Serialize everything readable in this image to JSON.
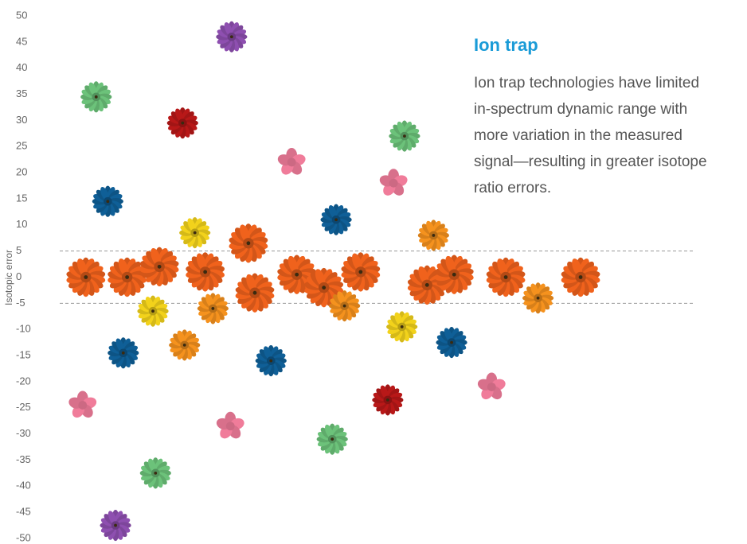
{
  "chart_data": {
    "type": "scatter",
    "y_label": "Isotopic error",
    "title": "Ion trap",
    "description_lines": [
      "Ion trap technologies have limited",
      "in-spectrum dynamic range with",
      "more variation in the measured",
      "signal—resulting in greater isotope",
      "ratio errors."
    ],
    "ylim": [
      -50,
      50
    ],
    "yticks": [
      50,
      45,
      40,
      35,
      30,
      25,
      20,
      15,
      10,
      5,
      0,
      -5,
      -10,
      -15,
      -20,
      -25,
      -30,
      -35,
      -40,
      -45,
      -50
    ],
    "xlim": [
      0,
      100
    ],
    "reference_lines": [
      5,
      -5
    ],
    "series": [
      {
        "color": "#f0621c",
        "marker": "large-flower",
        "x": [
          5.9,
          12.3,
          17.3,
          24.4,
          31.1,
          32.1,
          38.6,
          42.8,
          48.5,
          58.8,
          63.0,
          71.0,
          82.6
        ],
        "values": [
          0,
          0,
          2,
          1,
          6.5,
          -3,
          0.5,
          -2,
          1,
          -1.5,
          0.5,
          0,
          0
        ]
      },
      {
        "color": "#f5921e",
        "marker": "flower",
        "x": [
          59.8,
          25.6,
          46.0,
          76.0,
          21.2
        ],
        "values": [
          8,
          -6,
          -5.5,
          -4,
          -13
        ]
      },
      {
        "color": "#f2d21b",
        "marker": "flower",
        "x": [
          22.8,
          16.3,
          54.9
        ],
        "values": [
          8.5,
          -6.5,
          -9.5
        ]
      },
      {
        "color": "#0f5f97",
        "marker": "flower",
        "x": [
          9.3,
          44.7,
          11.7,
          34.6,
          62.6
        ],
        "values": [
          14.5,
          11,
          -14.5,
          -16,
          -12.5
        ]
      },
      {
        "color": "#b81818",
        "marker": "flower",
        "x": [
          20.9,
          52.7
        ],
        "values": [
          29.5,
          -23.5
        ]
      },
      {
        "color": "#8e4fb0",
        "marker": "flower",
        "x": [
          28.5,
          10.5
        ],
        "values": [
          46,
          -47.5
        ]
      },
      {
        "color": "#6cc27a",
        "marker": "flower",
        "x": [
          7.5,
          55.3,
          44.1,
          16.7
        ],
        "values": [
          34.5,
          27,
          -31,
          -37.5
        ]
      },
      {
        "color": "#f07c9a",
        "marker": "star",
        "x": [
          37.8,
          53.6,
          5.4,
          28.3,
          68.8
        ],
        "values": [
          22,
          18,
          -24.5,
          -28.5,
          -21
        ]
      }
    ]
  }
}
